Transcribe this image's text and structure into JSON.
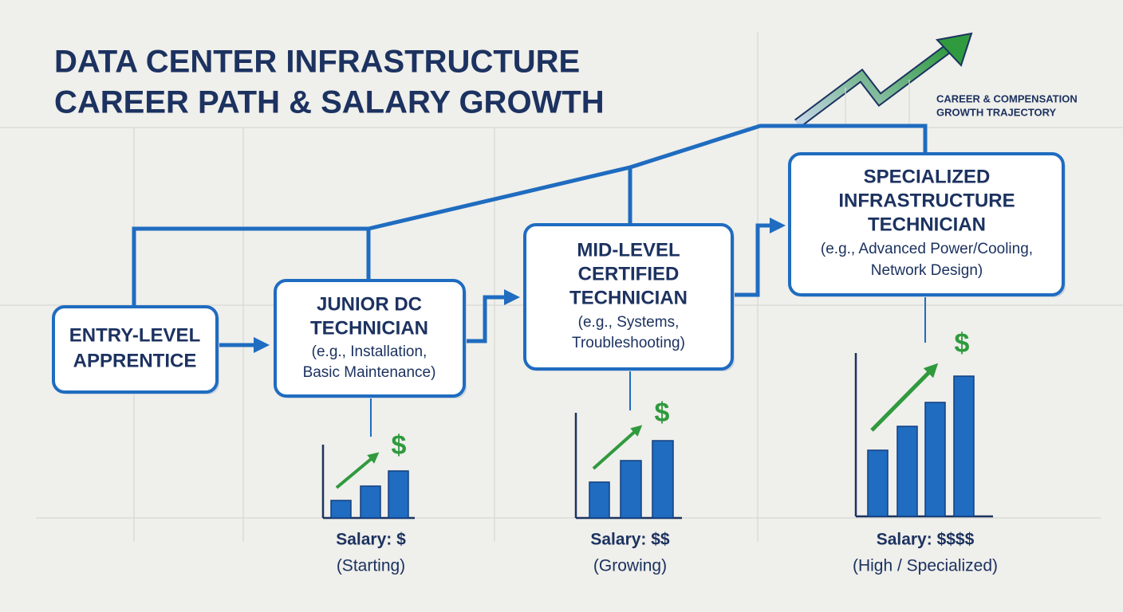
{
  "header": {
    "title": [
      "DATA CENTER INFRASTRUCTURE",
      "CAREER PATH & SALARY GROWTH"
    ],
    "tag": [
      "CAREER & COMPENSATION",
      "GROWTH TRAJECTORY"
    ]
  },
  "nodes": [
    {
      "label": [
        "ENTRY-LEVEL",
        "APPRENTICE"
      ]
    },
    {
      "label": [
        "JUNIOR DC",
        "TECHNICIAN"
      ],
      "detail": [
        "(e.g., Installation,",
        "Basic Maintenance)"
      ]
    },
    {
      "label": [
        "MID-LEVEL",
        "CERTIFIED",
        "TECHNICIAN"
      ],
      "detail": [
        "(e.g., Systems,",
        "Troubleshooting)"
      ]
    },
    {
      "label": [
        "SPECIALIZED",
        "INFRASTRUCTURE",
        "TECHNICIAN"
      ],
      "detail": [
        "(e.g., Advanced Power/Cooling,",
        "Network Design)"
      ]
    }
  ],
  "salaries": [
    {
      "symbol": "$",
      "label": "Salary: $",
      "note": "(Starting)"
    },
    {
      "symbol": "$",
      "label": "Salary: $$",
      "note": "(Growing)"
    },
    {
      "symbol": "$",
      "label": "Salary: $$$$",
      "note": "(High / Specialized)"
    }
  ]
}
